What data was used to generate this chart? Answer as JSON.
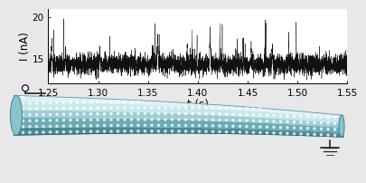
{
  "xlabel": "t (s)",
  "ylabel": "I (nA)",
  "xlim": [
    1.25,
    1.55
  ],
  "ylim": [
    12,
    21
  ],
  "yticks": [
    15,
    20
  ],
  "xticks": [
    1.25,
    1.3,
    1.35,
    1.4,
    1.45,
    1.5,
    1.55
  ],
  "signal_mean": 14.3,
  "signal_noise_std": 0.55,
  "line_color": "#111111",
  "background_color": "#e8e8e8",
  "plot_bg": "#ffffff",
  "seed": 42,
  "num_points": 4000,
  "xlabel_fontsize": 8.5,
  "ylabel_fontsize": 8.5,
  "tick_fontsize": 7.5,
  "tube_color_light": "#c8e8ec",
  "tube_color_mid": "#9ecdd4",
  "tube_color_dark": "#6aabb5",
  "tube_color_shadow": "#4a8a95",
  "dot_color": "#ffffff",
  "bg_lower": "#d0d8d8"
}
